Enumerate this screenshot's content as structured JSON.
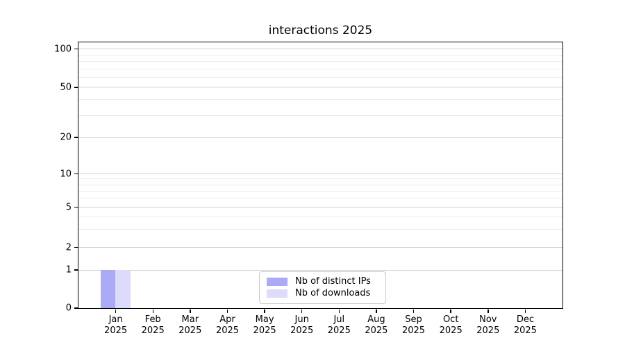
{
  "chart_data": {
    "type": "bar",
    "title": "interactions 2025",
    "categories": [
      "Jan",
      "Feb",
      "Mar",
      "Apr",
      "May",
      "Jun",
      "Jul",
      "Aug",
      "Sep",
      "Oct",
      "Nov",
      "Dec"
    ],
    "year_label": "2025",
    "series": [
      {
        "name": "Nb of distinct IPs",
        "color": "#aaaaf5",
        "values": [
          1,
          0,
          0,
          0,
          0,
          0,
          0,
          0,
          0,
          0,
          0,
          0
        ]
      },
      {
        "name": "Nb of downloads",
        "color": "#dcdcfa",
        "values": [
          1,
          0,
          0,
          0,
          0,
          0,
          0,
          0,
          0,
          0,
          0,
          0
        ]
      }
    ],
    "y_axis": {
      "scale": "log-like",
      "ticks": [
        0,
        1,
        2,
        5,
        10,
        20,
        50,
        100
      ],
      "minor_gridlines": [
        3,
        4,
        6,
        7,
        8,
        9,
        30,
        40,
        60,
        70,
        80,
        90
      ]
    },
    "x_axis": {
      "tick_label_lines": 2
    },
    "legend": {
      "position": "lower center"
    },
    "grid": true,
    "style": {
      "grid_major_color": "#d2d2d2",
      "grid_minor_color": "#ececec",
      "spine_color": "#000000",
      "text_color": "#000000",
      "legend_border_color": "#cccccc",
      "background": "#ffffff"
    }
  }
}
